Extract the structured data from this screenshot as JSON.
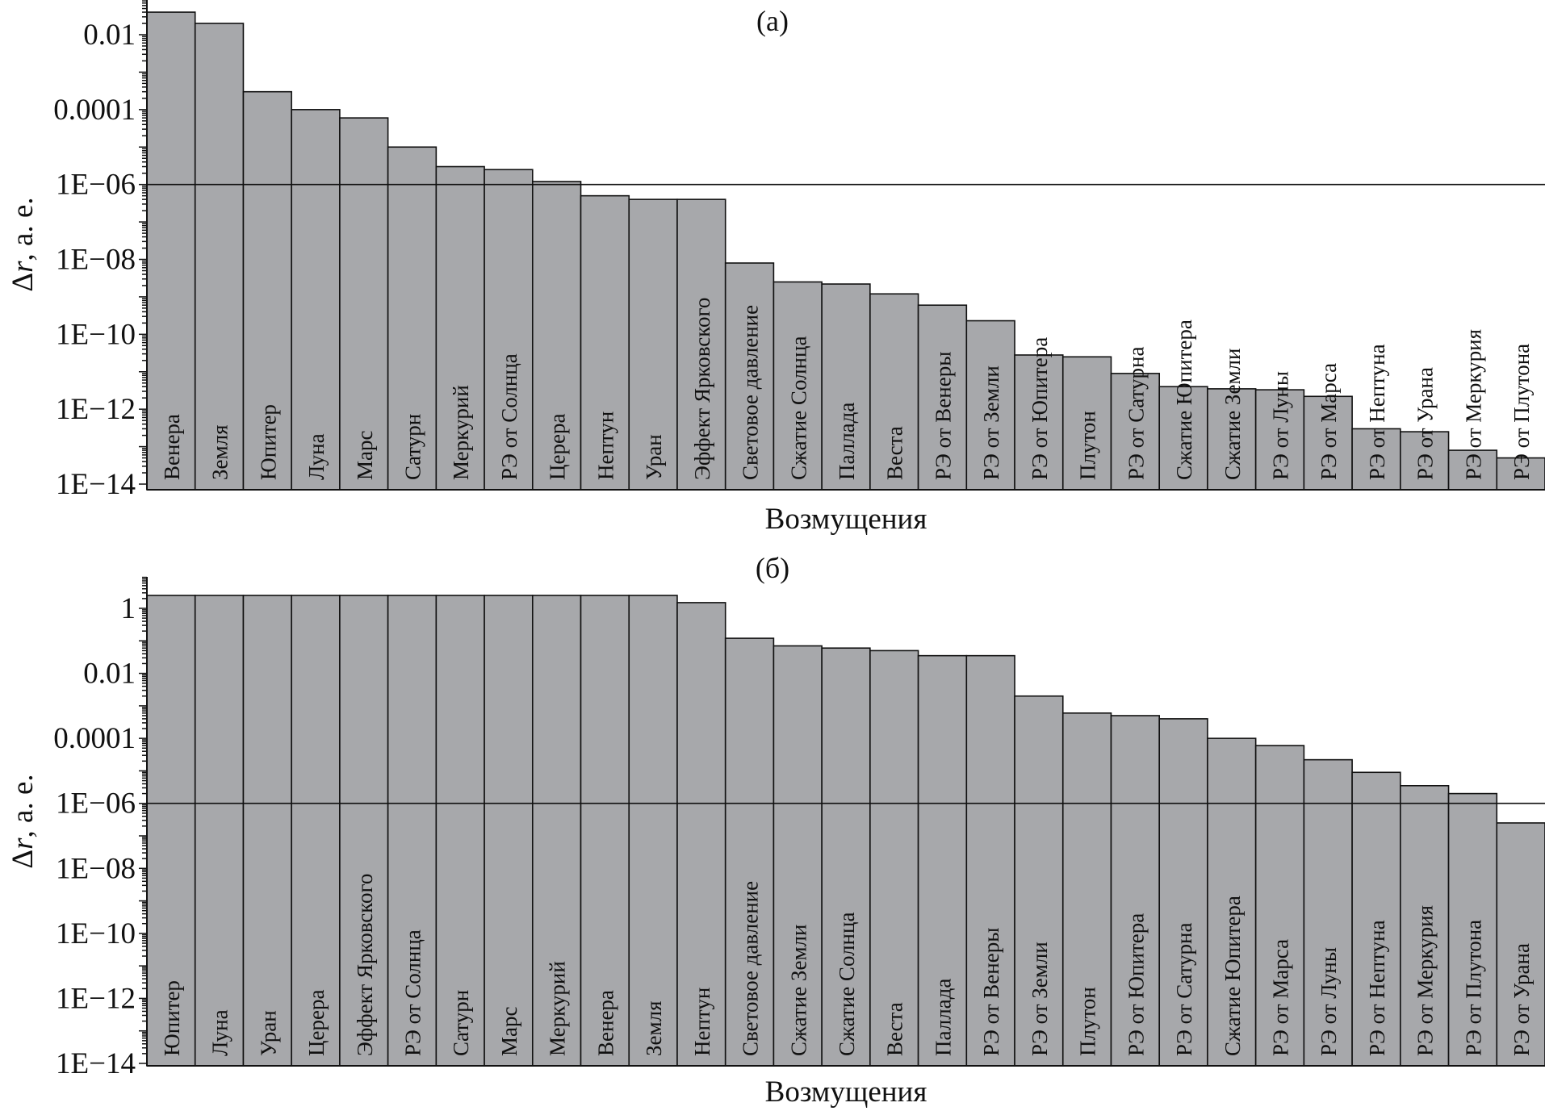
{
  "chart_data": [
    {
      "type": "bar",
      "title": "(а)",
      "xlabel": "Возмущения",
      "ylabel_main": "Δr",
      "ylabel_unit": ", а. е.",
      "yscale": "log",
      "ylim": [
        1e-14,
        0.1
      ],
      "yticks": [
        "0.01",
        "0.0001",
        "1E−06",
        "1E−08",
        "1E−10",
        "1E−12",
        "1E−14"
      ],
      "reference_line": 1e-06,
      "bar_color": "#a7a8ab",
      "categories": [
        "Венера",
        "Земля",
        "Юпитер",
        "Луна",
        "Марс",
        "Сатурн",
        "Меркурий",
        "РЭ от Солнца",
        "Церера",
        "Нептун",
        "Уран",
        "Эффект Ярковского",
        "Световое давление",
        "Сжатие Солнца",
        "Паллада",
        "Веста",
        "РЭ от Венеры",
        "РЭ от Земли",
        "РЭ от Юпитера",
        "Плутон",
        "РЭ от Сатурна",
        "Сжатие Юпитера",
        "Сжатие Земли",
        "РЭ от Луны",
        "РЭ от Марса",
        "РЭ от Нептуна",
        "РЭ от Урана",
        "РЭ от Меркурия",
        "РЭ от Плутона"
      ],
      "values": [
        0.04,
        0.02,
        0.0003,
        0.0001,
        6e-05,
        1e-05,
        3e-06,
        2.5e-06,
        1.2e-06,
        5e-07,
        4e-07,
        4e-07,
        8e-09,
        2.5e-09,
        2.2e-09,
        1.2e-09,
        6e-10,
        2.3e-10,
        2.8e-11,
        2.5e-11,
        9e-12,
        4e-12,
        3.5e-12,
        3.3e-12,
        2.2e-12,
        3e-13,
        2.5e-13,
        8e-14,
        5e-14
      ]
    },
    {
      "type": "bar",
      "title": "(б)",
      "xlabel": "Возмущения",
      "ylabel_main": "Δr",
      "ylabel_unit": ", а. е.",
      "yscale": "log",
      "ylim": [
        1e-14,
        10
      ],
      "yticks": [
        "1",
        "0.01",
        "0.0001",
        "1E−06",
        "1E−08",
        "1E−10",
        "1E−12",
        "1E−14"
      ],
      "reference_line": 1e-06,
      "bar_color": "#a7a8ab",
      "categories": [
        "Юпитер",
        "Луна",
        "Уран",
        "Церера",
        "Эффект Ярковского",
        "РЭ от Солнца",
        "Сатурн",
        "Марс",
        "Меркурий",
        "Венера",
        "Земля",
        "Нептун",
        "Световое давление",
        "Сжатие Земли",
        "Сжатие Солнца",
        "Веста",
        "Паллада",
        "РЭ от Венеры",
        "РЭ от Земли",
        "Плутон",
        "РЭ от Юпитера",
        "РЭ от Сатурна",
        "Сжатие Юпитера",
        "РЭ от Марса",
        "РЭ от Луны",
        "РЭ от Нептуна",
        "РЭ от Меркурия",
        "РЭ от Плутона",
        "РЭ от Урана"
      ],
      "values": [
        2.5,
        2.5,
        2.5,
        2.5,
        2.5,
        2.5,
        2.5,
        2.5,
        2.5,
        2.5,
        2.5,
        1.5,
        0.12,
        0.07,
        0.06,
        0.05,
        0.035,
        0.035,
        0.002,
        0.0006,
        0.0005,
        0.0004,
        0.0001,
        6e-05,
        2.2e-05,
        9e-06,
        3.5e-06,
        2e-06,
        2.5e-07
      ]
    }
  ]
}
